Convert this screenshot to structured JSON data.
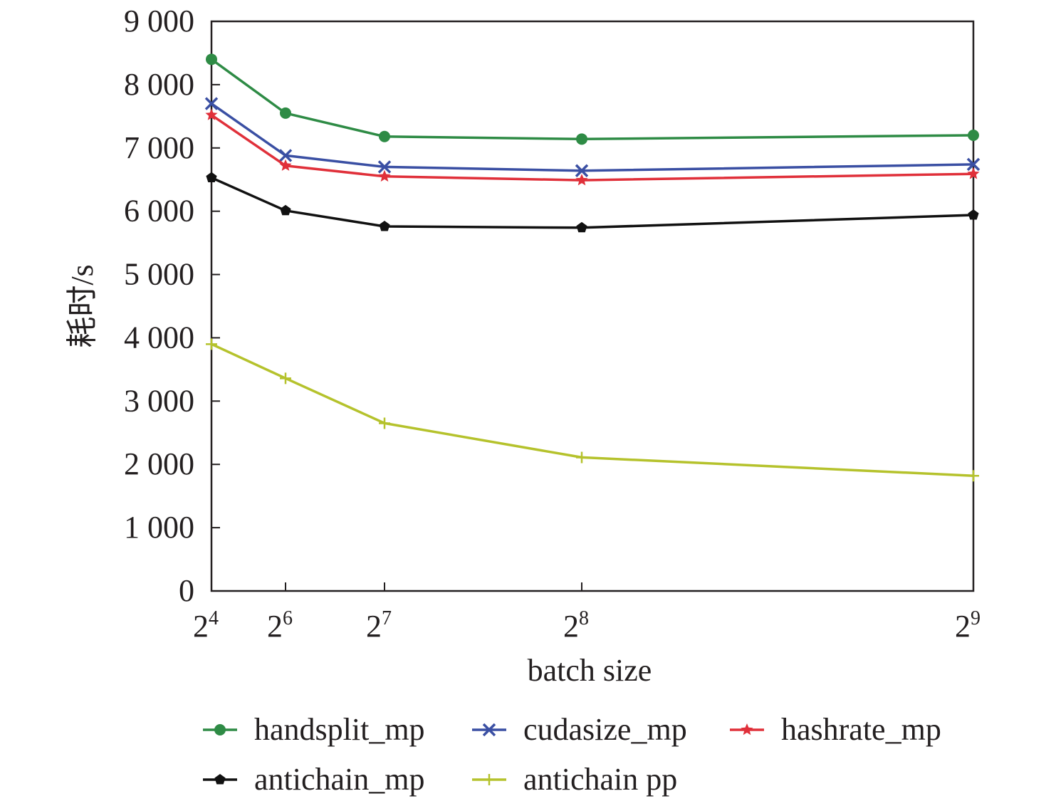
{
  "chart_data": {
    "type": "line",
    "title": "",
    "xlabel": "batch size",
    "ylabel": "耗时/s",
    "x_base": "2",
    "x_exponents": [
      "4",
      "6",
      "7",
      "8",
      "9"
    ],
    "y_ticks": [
      "0",
      "1 000",
      "2 000",
      "3 000",
      "4 000",
      "5 000",
      "6 000",
      "7 000",
      "8 000",
      "9 000"
    ],
    "ylim": [
      0,
      9000
    ],
    "grid": false,
    "legend_position": "bottom",
    "series": [
      {
        "name": "handsplit_mp",
        "color": "#2e8b45",
        "marker": "circle",
        "values": [
          8400,
          7550,
          7180,
          7140,
          7200
        ]
      },
      {
        "name": "cudasize_mp",
        "color": "#3a4fa3",
        "marker": "x",
        "values": [
          7700,
          6880,
          6700,
          6640,
          6740
        ]
      },
      {
        "name": "hashrate_mp",
        "color": "#e0303a",
        "marker": "star",
        "values": [
          7520,
          6720,
          6550,
          6490,
          6590
        ]
      },
      {
        "name": "antichain_mp",
        "color": "#111111",
        "marker": "pentagon",
        "values": [
          6530,
          6010,
          5760,
          5740,
          5940
        ]
      },
      {
        "name": "antichain pp",
        "color": "#b5c22c",
        "marker": "plus",
        "values": [
          3900,
          3360,
          2650,
          2110,
          1820
        ]
      }
    ]
  }
}
